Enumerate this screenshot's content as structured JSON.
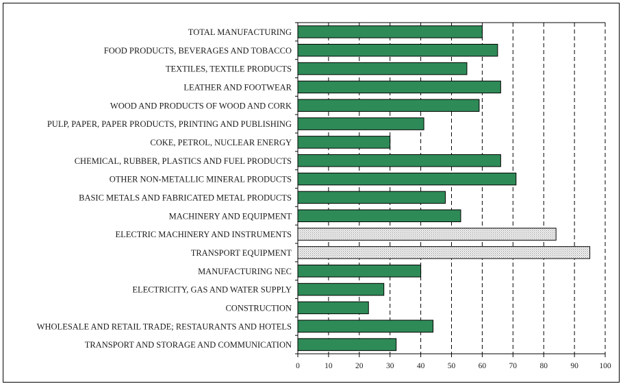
{
  "chart_data": {
    "type": "bar",
    "orientation": "horizontal",
    "categories": [
      "TOTAL MANUFACTURING",
      "FOOD PRODUCTS, BEVERAGES AND TOBACCO",
      "TEXTILES, TEXTILE PRODUCTS",
      "LEATHER AND FOOTWEAR",
      "WOOD AND PRODUCTS OF WOOD AND CORK",
      "PULP, PAPER, PAPER PRODUCTS, PRINTING AND PUBLISHING",
      "COKE, PETROL, NUCLEAR ENERGY",
      "CHEMICAL, RUBBER, PLASTICS AND FUEL PRODUCTS",
      "OTHER NON-METALLIC MINERAL PRODUCTS",
      "BASIC METALS AND FABRICATED METAL PRODUCTS",
      "MACHINERY AND EQUIPMENT",
      "ELECTRIC MACHINERY AND INSTRUMENTS",
      "TRANSPORT EQUIPMENT",
      "MANUFACTURING NEC",
      "ELECTRICITY, GAS AND WATER SUPPLY",
      "CONSTRUCTION",
      "WHOLESALE AND RETAIL TRADE; RESTAURANTS AND HOTELS",
      "TRANSPORT AND STORAGE AND COMMUNICATION"
    ],
    "values": [
      60,
      65,
      55,
      66,
      59,
      41,
      30,
      66,
      71,
      48,
      53,
      84,
      95,
      40,
      28,
      23,
      44,
      32
    ],
    "highlighted": [
      false,
      false,
      false,
      false,
      false,
      false,
      false,
      false,
      false,
      false,
      false,
      true,
      true,
      false,
      false,
      false,
      false,
      false
    ],
    "xlim": [
      0,
      100
    ],
    "xticks": [
      "0",
      "10",
      "20",
      "30",
      "40",
      "50",
      "60",
      "70",
      "80",
      "90",
      "100"
    ],
    "grid": "vertical dashed",
    "title": "",
    "xlabel": "",
    "ylabel": "",
    "colors": {
      "bar": "#2e8b57",
      "highlight": "#dcdcdc",
      "outline": "#000000"
    }
  }
}
